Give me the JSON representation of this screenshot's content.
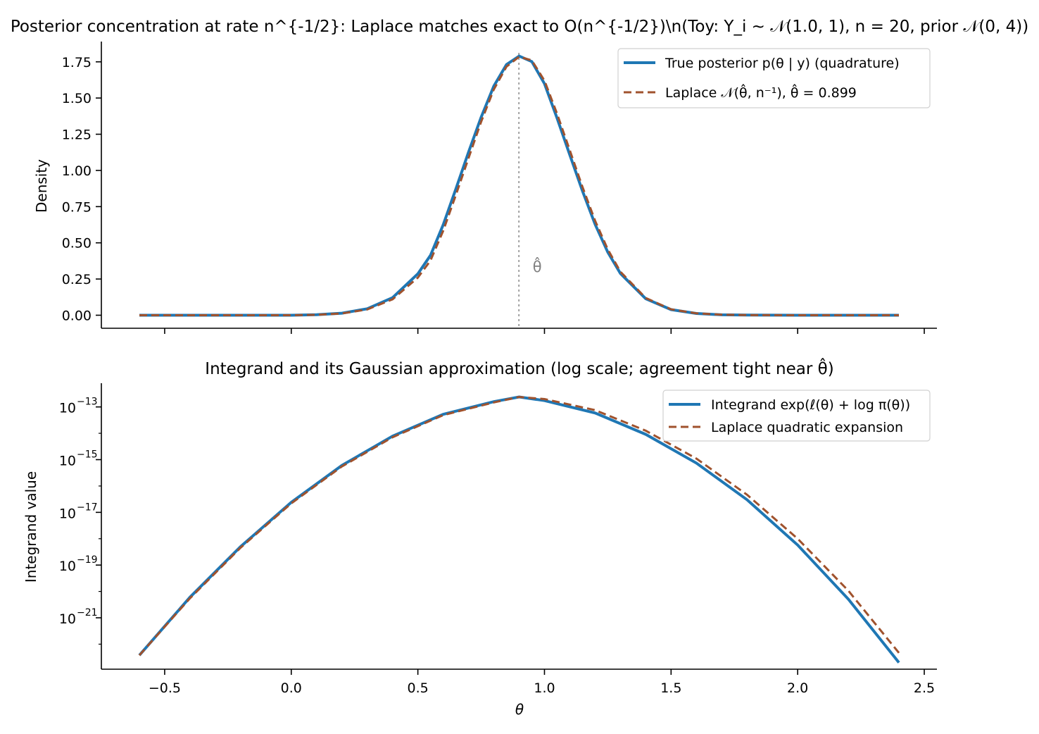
{
  "colors": {
    "true_series": "#1f77b4",
    "laplace_series": "#a0522d",
    "marker_line": "#a9a9a9",
    "annotation": "#808080"
  },
  "chart_data": [
    {
      "type": "line",
      "title": "Posterior concentration at rate n^{-1/2}: Laplace matches exact to O(n^{-1/2})\\n(Toy: Y_i ~ 𝒩(1.0, 1), n = 20, prior 𝒩(0, 4))",
      "xlabel": "",
      "ylabel": "Density",
      "xlim": [
        -0.75,
        2.55
      ],
      "ylim": [
        -0.09,
        1.89
      ],
      "y_ticks": [
        0.0,
        0.25,
        0.5,
        0.75,
        1.0,
        1.25,
        1.5,
        1.75
      ],
      "y_tick_labels": [
        "0.00",
        "0.25",
        "0.50",
        "0.75",
        "1.00",
        "1.25",
        "1.50",
        "1.75"
      ],
      "x_ticks": [
        -0.5,
        0.0,
        0.5,
        1.0,
        1.5,
        2.0,
        2.5
      ],
      "grid": false,
      "legend": "top-right",
      "x": [
        -0.6,
        -0.4,
        -0.2,
        0.0,
        0.1,
        0.2,
        0.3,
        0.4,
        0.5,
        0.55,
        0.6,
        0.65,
        0.7,
        0.75,
        0.8,
        0.85,
        0.9,
        0.95,
        1.0,
        1.05,
        1.1,
        1.15,
        1.2,
        1.25,
        1.3,
        1.4,
        1.5,
        1.6,
        1.7,
        1.8,
        2.0,
        2.2,
        2.4
      ],
      "series": [
        {
          "name": "True posterior p(θ | y) (quadrature)",
          "style": "solid",
          "values": [
            0.0,
            0.0,
            0.0,
            0.0,
            0.004,
            0.014,
            0.045,
            0.121,
            0.286,
            0.414,
            0.624,
            0.872,
            1.126,
            1.367,
            1.582,
            1.731,
            1.79,
            1.752,
            1.599,
            1.359,
            1.108,
            0.859,
            0.628,
            0.436,
            0.288,
            0.114,
            0.039,
            0.012,
            0.003,
            0.001,
            0.0,
            0.0,
            0.0
          ]
        },
        {
          "name": "Laplace 𝒩(θ̂, n⁻¹), θ̂ = 0.899",
          "style": "dashed",
          "values": [
            0.0,
            0.0,
            0.0,
            0.0,
            0.003,
            0.012,
            0.04,
            0.11,
            0.26,
            0.378,
            0.583,
            0.83,
            1.085,
            1.336,
            1.559,
            1.717,
            1.785,
            1.76,
            1.62,
            1.39,
            1.14,
            0.887,
            0.653,
            0.455,
            0.3,
            0.119,
            0.041,
            0.013,
            0.004,
            0.001,
            0.0,
            0.0,
            0.0
          ]
        }
      ],
      "annotations": [
        {
          "text": "θ̂",
          "x": 0.899
        }
      ]
    },
    {
      "type": "line",
      "title": "Integrand and its Gaussian approximation (log scale; agreement tight near θ̂)",
      "xlabel": "θ",
      "ylabel": "Integrand value",
      "xlim": [
        -0.75,
        2.55
      ],
      "y_scale": "log",
      "ylim_log10": [
        -22.95,
        -12.1
      ],
      "y_ticks_log10": [
        -21,
        -19,
        -17,
        -15,
        -13
      ],
      "x_ticks": [
        -0.5,
        0.0,
        0.5,
        1.0,
        1.5,
        2.0,
        2.5
      ],
      "grid": false,
      "legend": "top-right",
      "x": [
        -0.6,
        -0.4,
        -0.2,
        0.0,
        0.2,
        0.4,
        0.6,
        0.8,
        0.9,
        1.0,
        1.2,
        1.4,
        1.6,
        1.8,
        2.0,
        2.2,
        2.4
      ],
      "series": [
        {
          "name": "Integrand exp(ℓ(θ) + log π(θ))",
          "style": "solid",
          "log10_values": [
            -22.42,
            -20.22,
            -18.3,
            -16.62,
            -15.22,
            -14.11,
            -13.28,
            -12.8,
            -12.62,
            -12.76,
            -13.23,
            -14.04,
            -15.13,
            -16.52,
            -18.24,
            -20.29,
            -22.7
          ]
        },
        {
          "name": "Laplace quadratic expansion",
          "style": "dashed",
          "log10_values": [
            -22.42,
            -20.26,
            -18.34,
            -16.66,
            -15.26,
            -14.15,
            -13.31,
            -12.83,
            -12.62,
            -12.7,
            -13.12,
            -13.9,
            -14.96,
            -16.33,
            -18.0,
            -19.97,
            -22.33
          ]
        }
      ]
    }
  ]
}
